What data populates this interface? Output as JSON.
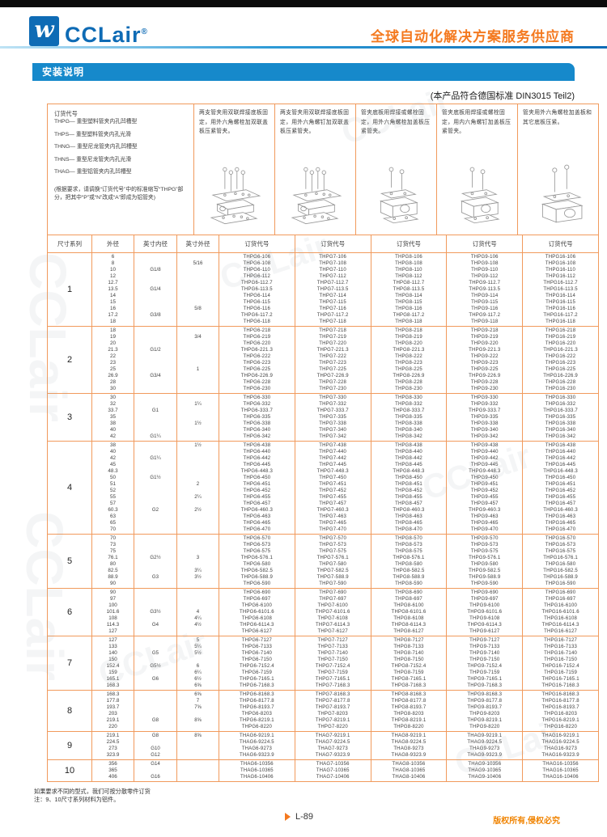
{
  "header": {
    "logo_text": "CCLair",
    "logo_reg": "®",
    "slogan": "全球自动化解决方案服务供应商"
  },
  "section_title": "安装说明",
  "standard_note": "(本产品符合德国标准 DIN3015 Teil2)",
  "info_box": {
    "title": "订货代号",
    "items": [
      "THPG— 重型塑料管夹内孔凹槽型",
      "THPS— 重型塑料管夹内孔光滑",
      "THNG— 重型尼龙管夹内孔凹槽型",
      "THNS— 重型尼龙管夹内孔光滑",
      "THAG— 重型铝管夹内孔凹槽型"
    ],
    "note": "(根据要求，请调换“订货代号”中的标准缩写“THPG”部分，把其中“P”或“N”改成“A”即成为铝管夹)"
  },
  "descriptions": [
    "两支管夹用双联焊接底板固定，用外六角螺栓加双联盖板压紧管夹。",
    "两支管夹用双联焊接底板固定，用外六角螺钉加双联盖板压紧管夹。",
    "管夹底板用焊接或螺栓固定，用外六角螺栓加盖板压紧管夹。",
    "管夹底板用焊接或螺栓固定，用内六角螺钉加盖板压紧管夹。",
    "管夹用外六角螺栓加盖板和其它底板压紧。"
  ],
  "table": {
    "headers": [
      "尺寸系列",
      "外径",
      "英寸内径",
      "英寸外径",
      "订货代号",
      "订货代号",
      "订货代号",
      "订货代号",
      "订货代号"
    ],
    "code_cols": [
      "6",
      "7",
      "8",
      "9",
      "16"
    ],
    "rows": [
      {
        "series": "1",
        "prefix": "THPG",
        "od": [
          "6",
          "8",
          "10",
          "12",
          "12.7",
          "13.5",
          "14",
          "15",
          "16",
          "17.2",
          "18"
        ],
        "inch_id": [
          {
            "v": "G1/8",
            "i": 2
          },
          {
            "v": "G1/4",
            "i": 5
          },
          {
            "v": "G3/8",
            "i": 9
          }
        ],
        "inch_od": [
          {
            "v": "5/16",
            "i": 1
          },
          {
            "v": "5/8",
            "i": 8
          }
        ],
        "suffix": [
          "106",
          "108",
          "110",
          "112",
          "112.7",
          "113.5",
          "114",
          "115",
          "116",
          "117.2",
          "118"
        ]
      },
      {
        "series": "2",
        "prefix": "THPG",
        "od": [
          "18",
          "19",
          "20",
          "21.3",
          "22",
          "23",
          "25",
          "26.9",
          "28",
          "30"
        ],
        "inch_id": [
          {
            "v": "G1/2",
            "i": 3
          },
          {
            "v": "G3/4",
            "i": 7
          }
        ],
        "inch_od": [
          {
            "v": "3/4",
            "i": 1
          },
          {
            "v": "1",
            "i": 6
          }
        ],
        "suffix": [
          "218",
          "219",
          "220",
          "221.3",
          "222",
          "223",
          "225",
          "226.9",
          "228",
          "230"
        ]
      },
      {
        "series": "3",
        "prefix": "THPG",
        "od": [
          "30",
          "32",
          "33.7",
          "35",
          "38",
          "40",
          "42"
        ],
        "inch_id": [
          {
            "v": "G1",
            "i": 2
          },
          {
            "v": "G1¼",
            "i": 6
          }
        ],
        "inch_od": [
          {
            "v": "1¼",
            "i": 1
          },
          {
            "v": "1½",
            "i": 4
          }
        ],
        "suffix": [
          "330",
          "332",
          "333.7",
          "335",
          "338",
          "340",
          "342"
        ]
      },
      {
        "series": "4",
        "prefix": "THPG",
        "od": [
          "38",
          "40",
          "42",
          "45",
          "48.3",
          "50",
          "51",
          "52",
          "55",
          "57",
          "60.3",
          "63",
          "65",
          "70"
        ],
        "inch_id": [
          {
            "v": "G1¼",
            "i": 2
          },
          {
            "v": "G1½",
            "i": 5
          },
          {
            "v": "G2",
            "i": 10
          }
        ],
        "inch_od": [
          {
            "v": "1½",
            "i": 0
          },
          {
            "v": "2",
            "i": 6
          },
          {
            "v": "2¼",
            "i": 8
          },
          {
            "v": "2½",
            "i": 10
          }
        ],
        "suffix": [
          "438",
          "440",
          "442",
          "445",
          "448.3",
          "450",
          "451",
          "452",
          "455",
          "457",
          "460.3",
          "463",
          "465",
          "470"
        ]
      },
      {
        "series": "5",
        "prefix": "THPG",
        "od": [
          "70",
          "73",
          "75",
          "76.1",
          "80",
          "82.5",
          "88.9",
          "90"
        ],
        "inch_id": [
          {
            "v": "G2½",
            "i": 3
          },
          {
            "v": "G3",
            "i": 6
          }
        ],
        "inch_od": [
          {
            "v": "3",
            "i": 3
          },
          {
            "v": "3¼",
            "i": 5
          },
          {
            "v": "3½",
            "i": 6
          }
        ],
        "suffix": [
          "570",
          "573",
          "575",
          "576.1",
          "580",
          "582.5",
          "588.9",
          "590"
        ]
      },
      {
        "series": "6",
        "prefix": "THPG",
        "od": [
          "90",
          "97",
          "100",
          "101.6",
          "108",
          "114.3",
          "127"
        ],
        "inch_id": [
          {
            "v": "G3½",
            "i": 3
          },
          {
            "v": "G4",
            "i": 5
          }
        ],
        "inch_od": [
          {
            "v": "4",
            "i": 3
          },
          {
            "v": "4¼",
            "i": 4
          },
          {
            "v": "4½",
            "i": 5
          }
        ],
        "suffix": [
          "690",
          "697",
          "6100",
          "6101.6",
          "6108",
          "6114.3",
          "6127"
        ]
      },
      {
        "series": "7",
        "prefix": "THPG",
        "od": [
          "127",
          "133",
          "140",
          "150",
          "152.4",
          "159",
          "165.1",
          "168.3"
        ],
        "inch_id": [
          {
            "v": "G5",
            "i": 2
          },
          {
            "v": "G5½",
            "i": 4
          },
          {
            "v": "G6",
            "i": 6
          }
        ],
        "inch_od": [
          {
            "v": "5",
            "i": 0
          },
          {
            "v": "5¼",
            "i": 1
          },
          {
            "v": "5½",
            "i": 2
          },
          {
            "v": "6",
            "i": 4
          },
          {
            "v": "6¼",
            "i": 5
          },
          {
            "v": "6½",
            "i": 6
          },
          {
            "v": "6⅝",
            "i": 7
          }
        ],
        "suffix": [
          "7127",
          "7133",
          "7140",
          "7150",
          "7152.4",
          "7159",
          "7165.1",
          "7168.3"
        ]
      },
      {
        "series": "8",
        "prefix": "THPG",
        "od": [
          "168.3",
          "177.8",
          "193.7",
          "203",
          "219.1",
          "220"
        ],
        "inch_id": [
          {
            "v": "G8",
            "i": 4
          }
        ],
        "inch_od": [
          {
            "v": "6⅝",
            "i": 0
          },
          {
            "v": "7",
            "i": 1
          },
          {
            "v": "7⅝",
            "i": 2
          },
          {
            "v": "8⅝",
            "i": 4
          }
        ],
        "suffix": [
          "8168.3",
          "8177.8",
          "8193.7",
          "8203",
          "8219.1",
          "8220"
        ]
      },
      {
        "series": "9",
        "prefix": "THAG",
        "od": [
          "219.1",
          "224.5",
          "273",
          "323.9"
        ],
        "inch_id": [
          {
            "v": "G8",
            "i": 0
          },
          {
            "v": "G10",
            "i": 2
          },
          {
            "v": "G12",
            "i": 3
          }
        ],
        "inch_od": [
          {
            "v": "8⅝",
            "i": 0
          }
        ],
        "suffix": [
          "9219.1",
          "9224.5",
          "9273",
          "9323.9"
        ]
      },
      {
        "series": "10",
        "prefix": "THAG",
        "od": [
          "356",
          "365",
          "406"
        ],
        "inch_id": [
          {
            "v": "G14",
            "i": 0
          },
          {
            "v": "G16",
            "i": 2
          }
        ],
        "inch_od": [],
        "suffix": [
          "10356",
          "10365",
          "10406"
        ]
      }
    ]
  },
  "notes": [
    "如果要求不同的型式，我们可按分散零件订货",
    "注：9、10尺寸系列材料为铝件。"
  ],
  "footer": {
    "page": "L-89",
    "copyright": "版权所有,侵权必究"
  },
  "watermark": "CCLair",
  "colors": {
    "accent_orange": "#f4791f",
    "table_border": "#f19a5c",
    "section_blue": "#1689cb",
    "logo_blue": "#0e6bb5"
  }
}
